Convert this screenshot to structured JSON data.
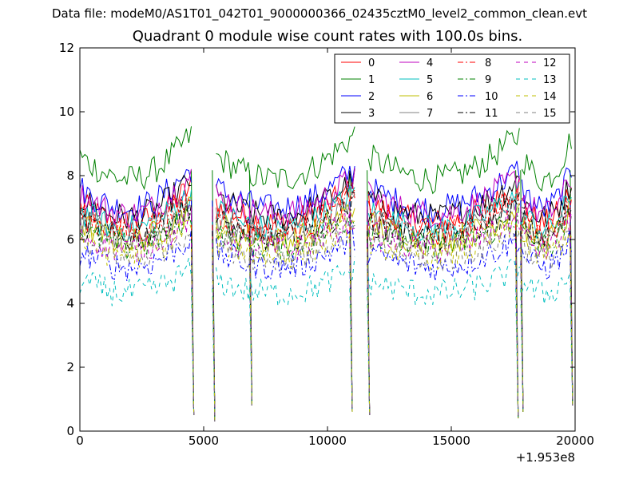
{
  "chart_data": {
    "type": "line",
    "supertitle": "Data file: modeM0/AS1T01_042T01_9000000366_02435cztM0_level2_common_clean.evt",
    "title": "Quadrant 0 module wise count rates with 100.0s bins.",
    "xlabel": "",
    "ylabel": "",
    "xlim": [
      0,
      20000
    ],
    "ylim": [
      0,
      12
    ],
    "x_offset_label": "+1.953e8",
    "xticks": [
      0,
      5000,
      10000,
      15000,
      20000
    ],
    "xtick_labels": [
      "0",
      "5000",
      "10000",
      "15000",
      "20000"
    ],
    "yticks": [
      0,
      2,
      4,
      6,
      8,
      10,
      12
    ],
    "ytick_labels": [
      "0",
      "2",
      "4",
      "6",
      "8",
      "10",
      "12"
    ],
    "grid": false,
    "legend_position": "top-right",
    "legend_columns": 4,
    "segments": [
      [
        0,
        4500
      ],
      [
        5500,
        11100
      ],
      [
        11650,
        17750
      ],
      [
        17850,
        19900
      ]
    ],
    "drop_points": [
      [
        4600,
        0.5
      ],
      [
        5450,
        0.3
      ],
      [
        6950,
        0.8
      ],
      [
        11000,
        0.6
      ],
      [
        11700,
        0.5
      ],
      [
        17700,
        0.4
      ],
      [
        17900,
        0.6
      ],
      [
        19900,
        0.8
      ]
    ],
    "series": [
      {
        "name": "0",
        "color": "#ff0000",
        "dash": "solid",
        "base": 7.1
      },
      {
        "name": "1",
        "color": "#008000",
        "dash": "solid",
        "base": 8.6
      },
      {
        "name": "2",
        "color": "#0000ff",
        "dash": "solid",
        "base": 7.6
      },
      {
        "name": "3",
        "color": "#000000",
        "dash": "solid",
        "base": 7.3
      },
      {
        "name": "4",
        "color": "#bf00bf",
        "dash": "solid",
        "base": 7.4
      },
      {
        "name": "5",
        "color": "#00bfbf",
        "dash": "solid",
        "base": 6.9
      },
      {
        "name": "6",
        "color": "#bfbf00",
        "dash": "solid",
        "base": 6.5
      },
      {
        "name": "7",
        "color": "#808080",
        "dash": "solid",
        "base": 6.6
      },
      {
        "name": "8",
        "color": "#ff0000",
        "dash": "dashdot",
        "base": 6.8
      },
      {
        "name": "9",
        "color": "#008000",
        "dash": "dashdot",
        "base": 6.3
      },
      {
        "name": "10",
        "color": "#0000ff",
        "dash": "dashdot",
        "base": 5.6
      },
      {
        "name": "11",
        "color": "#000000",
        "dash": "dashdot",
        "base": 6.6
      },
      {
        "name": "12",
        "color": "#bf00bf",
        "dash": "dashed",
        "base": 6.2
      },
      {
        "name": "13",
        "color": "#00bfbf",
        "dash": "dashed",
        "base": 4.7
      },
      {
        "name": "14",
        "color": "#bfbf00",
        "dash": "dashed",
        "base": 6.0
      },
      {
        "name": "15",
        "color": "#808080",
        "dash": "dashed",
        "base": 5.9
      }
    ]
  }
}
